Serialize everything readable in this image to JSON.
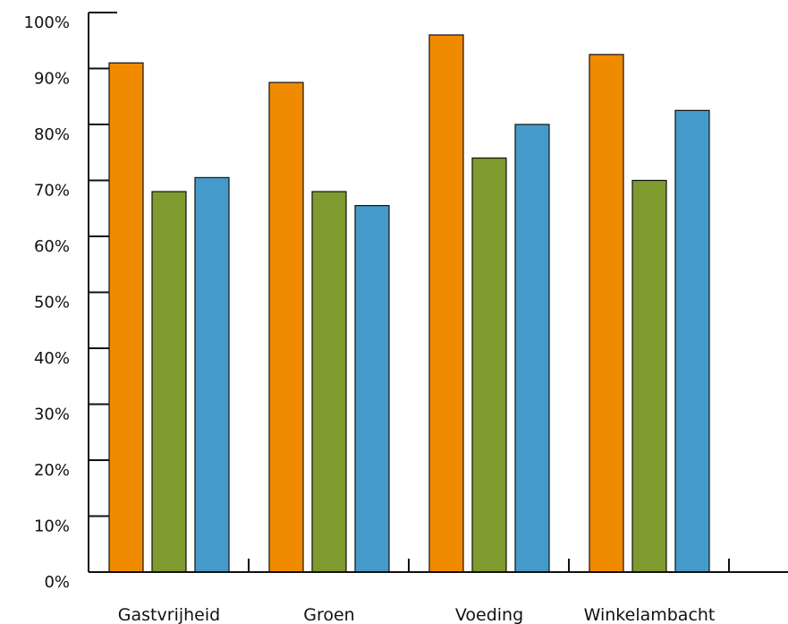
{
  "chart_data": {
    "type": "bar",
    "title": "",
    "xlabel": "",
    "ylabel": "",
    "categories": [
      "Gastvrijheid",
      "Groen",
      "Voeding",
      "Winkelambacht"
    ],
    "series": [
      {
        "color": "#f08a00",
        "values": [
          91,
          87.5,
          96,
          92.5
        ]
      },
      {
        "color": "#7f9a2e",
        "values": [
          68,
          68,
          74,
          70
        ]
      },
      {
        "color": "#449bc9",
        "values": [
          70.5,
          65.5,
          80,
          82.5
        ]
      }
    ],
    "ylim": [
      0,
      100
    ],
    "yticks": [
      0,
      10,
      20,
      30,
      40,
      50,
      60,
      70,
      80,
      90,
      100
    ],
    "ytick_labels": [
      "0%",
      "10%",
      "20%",
      "30%",
      "40%",
      "50%",
      "60%",
      "70%",
      "80%",
      "90%",
      "100%"
    ],
    "grid": false,
    "legend": "none"
  }
}
